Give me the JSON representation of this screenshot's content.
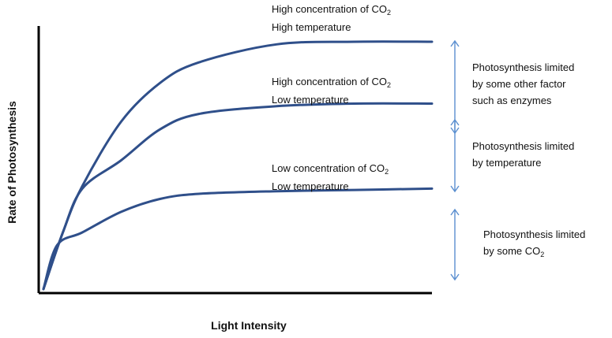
{
  "chart_data": {
    "type": "line",
    "xlabel": "Light Intensity",
    "ylabel": "Rate of Photosynthesis",
    "grid": false,
    "series": [
      {
        "name_lines": [
          "High concentration of CO",
          "2",
          "High temperature"
        ],
        "x": [
          0,
          0.5,
          1,
          2,
          3,
          4,
          6,
          8,
          10
        ],
        "y": [
          0,
          2.2,
          4.0,
          6.5,
          8.0,
          8.8,
          9.5,
          9.6,
          9.6
        ]
      },
      {
        "name_lines": [
          "High concentration of CO",
          "2",
          "Low temperature"
        ],
        "x": [
          0,
          0.5,
          1,
          2,
          3,
          4,
          6,
          8,
          10
        ],
        "y": [
          0,
          2.2,
          3.9,
          5.0,
          6.2,
          6.8,
          7.1,
          7.2,
          7.2
        ]
      },
      {
        "name_lines": [
          "Low concentration of CO",
          "2",
          "Low temperature"
        ],
        "x": [
          0,
          0.35,
          1,
          2,
          3,
          4,
          6,
          8,
          10
        ],
        "y": [
          0,
          1.7,
          2.2,
          3.0,
          3.5,
          3.7,
          3.8,
          3.85,
          3.9
        ]
      }
    ],
    "annotations": [
      {
        "lines": [
          "Photosynthesis limited",
          "by some other factor",
          "such as enzymes"
        ]
      },
      {
        "lines": [
          "Photosynthesis limited",
          "by temperature"
        ]
      },
      {
        "lines": [
          "Photosynthesis limited",
          "by some CO",
          "2"
        ]
      }
    ],
    "colors": {
      "curve": "#2f4f8a",
      "arrow": "#5b8fd0",
      "axis": "#000000"
    }
  }
}
